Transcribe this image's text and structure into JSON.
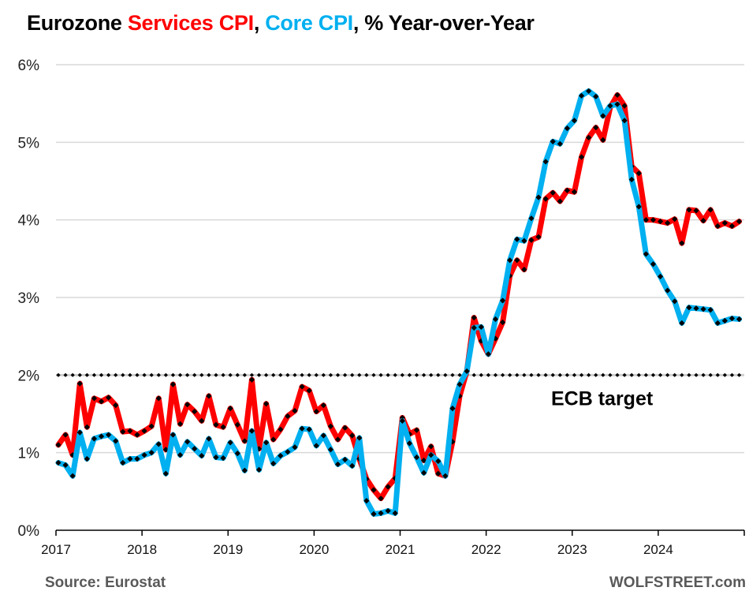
{
  "chart_data": {
    "type": "line",
    "title_parts": [
      {
        "text": "Eurozone ",
        "role": "plain"
      },
      {
        "text": "Services CPI",
        "role": "services"
      },
      {
        "text": ", ",
        "role": "plain"
      },
      {
        "text": "Core CPI",
        "role": "core"
      },
      {
        "text": ", % Year-over-Year",
        "role": "plain"
      }
    ],
    "title": "Eurozone Services CPI, Core CPI, % Year-over-Year",
    "xlabel": "",
    "ylabel": "",
    "x_start": {
      "year": 2017,
      "month": 1
    },
    "frequency": "monthly",
    "xlim": [
      2017,
      2025
    ],
    "ylim": [
      0,
      6
    ],
    "yticks": [
      0,
      1,
      2,
      3,
      4,
      5,
      6
    ],
    "ytick_labels": [
      "0%",
      "1%",
      "2%",
      "3%",
      "4%",
      "5%",
      "6%"
    ],
    "xtick_labels": [
      "2017",
      "2018",
      "2019",
      "2020",
      "2021",
      "2022",
      "2023",
      "2024"
    ],
    "grid": "horizontal",
    "series": [
      {
        "name": "Services CPI",
        "color": "#ff0000",
        "values": [
          1.1,
          1.23,
          0.97,
          1.89,
          1.33,
          1.7,
          1.66,
          1.71,
          1.61,
          1.27,
          1.28,
          1.23,
          1.28,
          1.34,
          1.7,
          1.04,
          1.88,
          1.37,
          1.62,
          1.53,
          1.41,
          1.73,
          1.36,
          1.33,
          1.57,
          1.36,
          1.15,
          1.94,
          1.05,
          1.63,
          1.17,
          1.3,
          1.47,
          1.54,
          1.85,
          1.8,
          1.53,
          1.61,
          1.34,
          1.17,
          1.32,
          1.22,
          0.92,
          0.66,
          0.52,
          0.41,
          0.56,
          0.67,
          1.45,
          1.24,
          1.29,
          0.9,
          1.08,
          0.73,
          0.7,
          1.14,
          1.73,
          2.05,
          2.74,
          2.44,
          2.27,
          2.47,
          2.68,
          3.28,
          3.48,
          3.36,
          3.74,
          3.78,
          4.27,
          4.35,
          4.24,
          4.38,
          4.36,
          4.81,
          5.06,
          5.19,
          5.03,
          5.45,
          5.61,
          5.47,
          4.69,
          4.6,
          4.0,
          4.0,
          3.98,
          3.96,
          4.01,
          3.7,
          4.13,
          4.12,
          3.99,
          4.13,
          3.92,
          3.96,
          3.92,
          3.98
        ]
      },
      {
        "name": "Core CPI",
        "color": "#00b0f0",
        "values": [
          0.87,
          0.84,
          0.7,
          1.26,
          0.92,
          1.18,
          1.21,
          1.23,
          1.15,
          0.87,
          0.92,
          0.92,
          0.97,
          1.0,
          1.11,
          0.73,
          1.23,
          0.97,
          1.14,
          1.05,
          0.96,
          1.18,
          0.94,
          0.93,
          1.13,
          0.99,
          0.77,
          1.28,
          0.78,
          1.13,
          0.86,
          0.96,
          1.01,
          1.07,
          1.31,
          1.3,
          1.09,
          1.22,
          1.04,
          0.85,
          0.91,
          0.83,
          1.19,
          0.38,
          0.21,
          0.22,
          0.25,
          0.22,
          1.41,
          1.12,
          0.94,
          0.74,
          0.97,
          0.89,
          0.7,
          1.57,
          1.88,
          2.05,
          2.61,
          2.62,
          2.27,
          2.72,
          2.96,
          3.48,
          3.75,
          3.73,
          4.02,
          4.29,
          4.75,
          5.01,
          4.98,
          5.18,
          5.28,
          5.6,
          5.66,
          5.59,
          5.34,
          5.47,
          5.49,
          5.28,
          4.52,
          4.17,
          3.56,
          3.43,
          3.27,
          3.09,
          2.95,
          2.67,
          2.87,
          2.86,
          2.85,
          2.84,
          2.67,
          2.7,
          2.73,
          2.72
        ]
      }
    ],
    "reference_lines": [
      {
        "name": "ECB target",
        "value": 2.0,
        "style": "dotted",
        "color": "#000000"
      }
    ],
    "annotations": [
      {
        "text": "ECB target",
        "attached_to": "ECB target line",
        "placement": "below-right"
      }
    ],
    "legend": "none (series named in title colors)"
  },
  "footer": {
    "source": "Source: Eurostat",
    "brand": "WOLFSTREET.com"
  },
  "colors": {
    "services": "#ff0000",
    "core": "#00b0f0",
    "grid": "#d9d9d9",
    "footer_text": "#595959"
  }
}
